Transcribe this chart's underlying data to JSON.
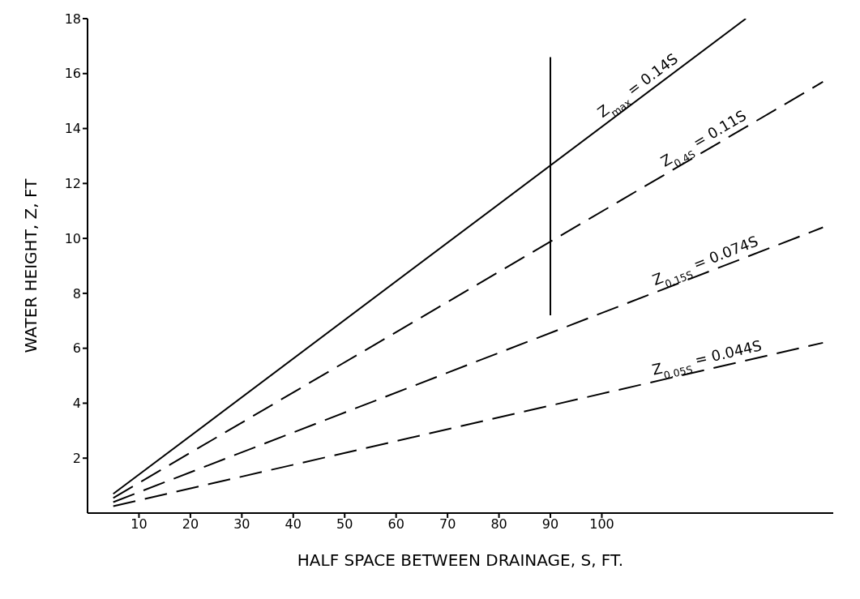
{
  "chart_data": {
    "type": "line",
    "xlabel": "HALF SPACE BETWEEN DRAINAGE, S, FT.",
    "ylabel": "WATER HEIGHT, Z, FT",
    "xlim": [
      0,
      145
    ],
    "xticks": [
      10,
      20,
      30,
      40,
      50,
      60,
      70,
      80,
      90,
      100
    ],
    "ylim": [
      0,
      18
    ],
    "yticks": [
      2,
      4,
      6,
      8,
      10,
      12,
      14,
      16,
      18
    ],
    "grid": false,
    "legend": false,
    "marker": "none",
    "series": [
      {
        "name": "Z$_{max}$ = 0.14S",
        "color": "#000000",
        "line_style": "solid",
        "x": [
          5,
          128
        ],
        "values": [
          0.7,
          18
        ]
      },
      {
        "name": "Z$_{0.4S}$ = 0.11S",
        "color": "#000000",
        "line_style": "dashed",
        "x": [
          5,
          143
        ],
        "values": [
          0.55,
          15.7
        ]
      },
      {
        "name": "Z$_{0.15S}$ = 0.074S",
        "color": "#000000",
        "line_style": "dashed",
        "x": [
          5,
          143
        ],
        "values": [
          0.4,
          10.4
        ]
      },
      {
        "name": "Z$_{0.05S}$ = 0.044S",
        "color": "#000000",
        "line_style": "dashed",
        "x": [
          5,
          143
        ],
        "values": [
          0.25,
          6.2
        ]
      },
      {
        "color": "#000000",
        "line_style": "solid",
        "x": [
          90,
          90
        ],
        "values": [
          7.2,
          16.6
        ]
      }
    ]
  }
}
